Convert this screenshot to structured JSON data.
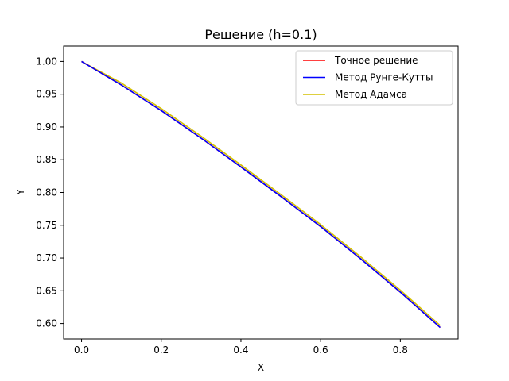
{
  "chart_data": {
    "type": "line",
    "title": "Решение (h=0.1)",
    "xlabel": "X",
    "ylabel": "Y",
    "xlim": [
      -0.045,
      0.945
    ],
    "ylim": [
      0.5765,
      1.0235
    ],
    "xticks": [
      0.0,
      0.2,
      0.4,
      0.6,
      0.8
    ],
    "xtick_labels": [
      "0.0",
      "0.2",
      "0.4",
      "0.6",
      "0.8"
    ],
    "yticks": [
      0.6,
      0.65,
      0.7,
      0.75,
      0.8,
      0.85,
      0.9,
      0.95,
      1.0
    ],
    "ytick_labels": [
      "0.60",
      "0.65",
      "0.70",
      "0.75",
      "0.80",
      "0.85",
      "0.90",
      "0.95",
      "1.00"
    ],
    "grid": false,
    "legend_position": "top-right",
    "x": [
      0.0,
      0.1,
      0.2,
      0.3,
      0.4,
      0.5,
      0.6,
      0.7,
      0.8,
      0.9
    ],
    "series": [
      {
        "name": "Точное решение",
        "color": "#ff0000",
        "values": [
          1.0,
          0.964,
          0.925,
          0.883,
          0.839,
          0.794,
          0.748,
          0.699,
          0.648,
          0.594
        ]
      },
      {
        "name": "Метод Рунге-Кутты",
        "color": "#0000ff",
        "values": [
          1.0,
          0.964,
          0.925,
          0.883,
          0.839,
          0.794,
          0.748,
          0.699,
          0.648,
          0.594
        ]
      },
      {
        "name": "Метод Адамса",
        "color": "#d4c000",
        "values": [
          1.0,
          0.967,
          0.928,
          0.886,
          0.842,
          0.797,
          0.751,
          0.702,
          0.651,
          0.597
        ]
      }
    ]
  }
}
